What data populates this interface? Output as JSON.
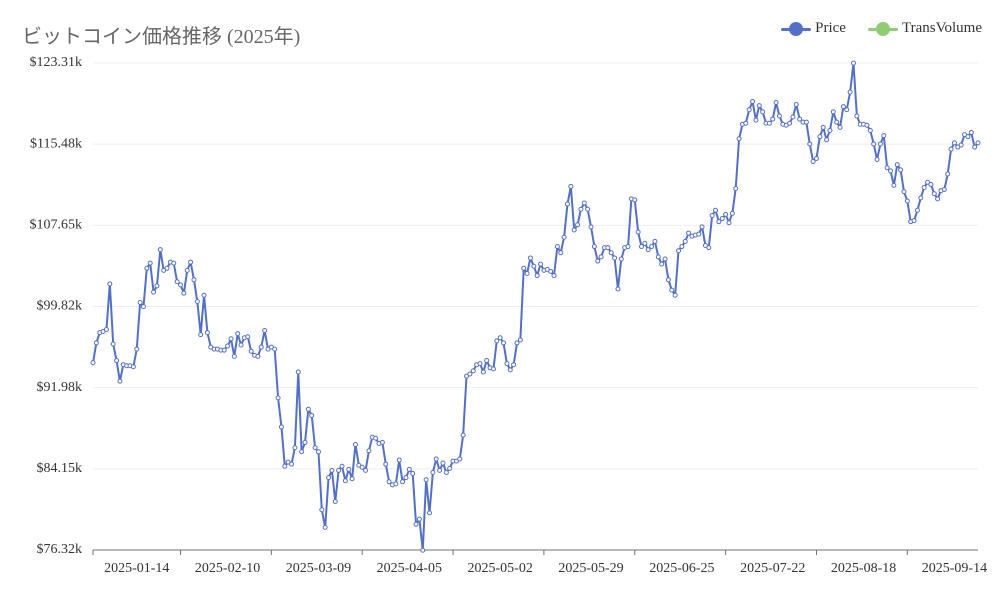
{
  "chart_data": {
    "type": "line",
    "title": "ビットコイン価格推移 (2025年)",
    "xlabel": "",
    "ylabel": "",
    "legend": {
      "placement": "top-right"
    },
    "grid": true,
    "x_start_date": "2025-01-01",
    "y_ticks": [
      "$76.32k",
      "$84.15k",
      "$91.98k",
      "$99.82k",
      "$107.65k",
      "$115.48k",
      "$123.31k"
    ],
    "ylim": [
      76.32,
      123.31
    ],
    "x_ticks": [
      "2025-01-14",
      "2025-02-10",
      "2025-03-09",
      "2025-04-05",
      "2025-05-02",
      "2025-05-29",
      "2025-06-25",
      "2025-07-22",
      "2025-08-18",
      "2025-09-14"
    ],
    "x_tick_days": [
      13,
      40,
      67,
      94,
      121,
      148,
      175,
      202,
      229,
      256
    ],
    "xlim_days": [
      0,
      263
    ],
    "series": [
      {
        "name": "Price",
        "color": "#5470c6",
        "values": [
          94.4,
          96.3,
          97.3,
          97.4,
          97.6,
          102.0,
          96.2,
          94.6,
          92.6,
          94.2,
          94.1,
          94.1,
          94.0,
          95.7,
          100.2,
          99.8,
          103.5,
          104.0,
          101.2,
          101.8,
          105.3,
          103.3,
          103.5,
          104.1,
          104.0,
          102.2,
          101.9,
          101.1,
          103.3,
          104.1,
          102.4,
          100.3,
          97.1,
          100.9,
          97.3,
          95.9,
          95.7,
          95.7,
          95.6,
          95.6,
          96.0,
          96.7,
          95.0,
          97.2,
          96.1,
          96.8,
          96.9,
          95.5,
          95.1,
          95.0,
          95.9,
          97.5,
          95.7,
          95.9,
          95.7,
          91.0,
          88.2,
          84.4,
          84.8,
          84.6,
          86.2,
          93.5,
          85.8,
          86.7,
          89.9,
          89.3,
          86.2,
          85.8,
          80.2,
          78.5,
          83.3,
          84.0,
          81.0,
          84.0,
          84.4,
          83.0,
          84.1,
          83.2,
          86.5,
          84.5,
          84.3,
          84.0,
          85.9,
          87.2,
          87.1,
          86.6,
          86.7,
          84.6,
          82.9,
          82.6,
          82.7,
          85.0,
          82.9,
          83.3,
          84.1,
          83.7,
          78.8,
          79.3,
          76.3,
          83.1,
          79.9,
          83.8,
          85.1,
          84.0,
          84.7,
          83.8,
          84.2,
          84.9,
          84.9,
          85.1,
          87.4,
          93.1,
          93.3,
          93.6,
          94.2,
          94.3,
          93.5,
          94.6,
          93.9,
          93.8,
          96.5,
          96.8,
          96.3,
          94.3,
          93.7,
          94.2,
          96.3,
          96.6,
          103.5,
          103.0,
          104.5,
          103.7,
          102.8,
          103.9,
          103.3,
          103.4,
          103.2,
          102.8,
          105.6,
          105.0,
          106.5,
          109.7,
          111.4,
          107.2,
          107.7,
          109.2,
          109.8,
          109.2,
          107.5,
          105.6,
          104.2,
          104.6,
          105.5,
          105.5,
          105.0,
          104.5,
          101.5,
          104.4,
          105.5,
          105.6,
          110.2,
          110.1,
          107.0,
          105.6,
          105.9,
          105.3,
          105.6,
          106.1,
          104.6,
          103.9,
          104.4,
          102.4,
          101.4,
          100.9,
          105.2,
          105.6,
          106.1,
          106.9,
          106.6,
          106.7,
          106.8,
          107.5,
          105.7,
          105.5,
          108.6,
          109.1,
          108.0,
          108.3,
          108.7,
          107.9,
          108.8,
          111.2,
          116.0,
          117.4,
          117.5,
          118.8,
          119.6,
          117.8,
          119.2,
          118.6,
          117.5,
          117.5,
          117.9,
          119.5,
          118.2,
          117.4,
          117.3,
          117.5,
          118.1,
          119.3,
          117.9,
          117.6,
          117.6,
          115.5,
          113.8,
          114.1,
          116.2,
          117.1,
          115.9,
          116.8,
          118.6,
          117.6,
          117.1,
          119.1,
          118.8,
          120.5,
          123.3,
          118.2,
          117.4,
          117.4,
          117.3,
          116.8,
          115.5,
          114.0,
          115.5,
          116.3,
          113.2,
          112.9,
          111.5,
          113.5,
          113.0,
          110.9,
          110.0,
          108.0,
          108.1,
          109.1,
          110.3,
          111.3,
          111.8,
          111.6,
          110.7,
          110.2,
          111.0,
          111.1,
          112.6,
          115.0,
          115.6,
          115.2,
          115.4,
          116.4,
          116.2,
          116.6,
          115.2,
          115.6
        ]
      },
      {
        "name": "TransVolume",
        "color": "#91cc75",
        "values": []
      }
    ]
  }
}
